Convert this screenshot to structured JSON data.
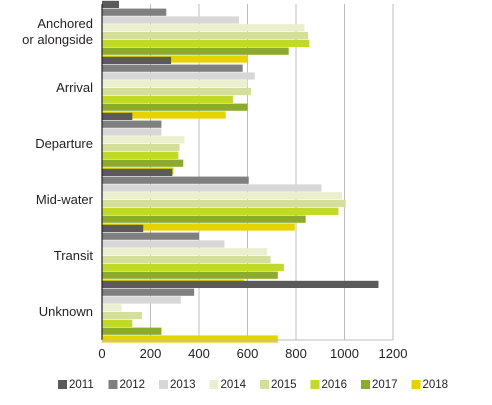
{
  "chart_data": {
    "type": "bar",
    "orientation": "horizontal",
    "categories": [
      [
        "Anchored",
        "or alongside"
      ],
      [
        "Arrival"
      ],
      [
        "Departure"
      ],
      [
        "Mid-water"
      ],
      [
        "Transit"
      ],
      [
        "Unknown"
      ]
    ],
    "series": [
      {
        "name": "2011",
        "color": "#5a5a5a",
        "values": [
          70,
          285,
          125,
          290,
          170,
          1140
        ]
      },
      {
        "name": "2012",
        "color": "#7f7f7f",
        "values": [
          265,
          580,
          245,
          605,
          400,
          380
        ]
      },
      {
        "name": "2013",
        "color": "#d7d7d7",
        "values": [
          565,
          630,
          245,
          905,
          505,
          325
        ]
      },
      {
        "name": "2014",
        "color": "#ebefcf",
        "values": [
          835,
          600,
          340,
          990,
          680,
          80
        ]
      },
      {
        "name": "2015",
        "color": "#d3df9a",
        "values": [
          850,
          615,
          320,
          1005,
          695,
          165
        ]
      },
      {
        "name": "2016",
        "color": "#c2d82a",
        "values": [
          855,
          540,
          315,
          975,
          750,
          125
        ]
      },
      {
        "name": "2017",
        "color": "#8cab2e",
        "values": [
          770,
          600,
          335,
          840,
          725,
          245
        ]
      },
      {
        "name": "2018",
        "color": "#e6d200",
        "values": [
          600,
          510,
          295,
          795,
          585,
          725
        ]
      }
    ],
    "xlim": [
      0,
      1200
    ],
    "xticks": [
      0,
      200,
      400,
      600,
      800,
      1000,
      1200
    ],
    "grid": "vertical",
    "legend": "bottom"
  }
}
